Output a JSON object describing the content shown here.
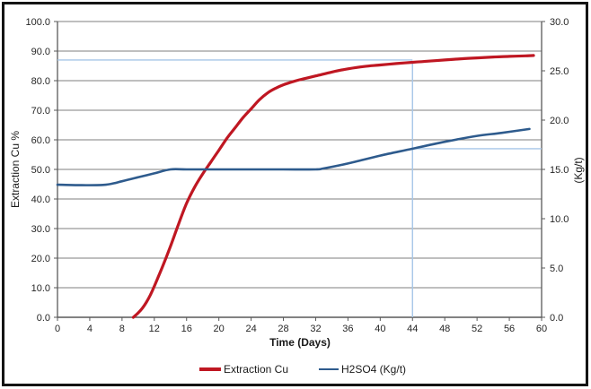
{
  "frame": {
    "background": "#ffffff",
    "border_color": "#141414"
  },
  "chart_data": {
    "type": "line",
    "title": "",
    "xlabel": "Time (Days)",
    "ylabel_left": "Extraction Cu %",
    "ylabel_right": "(Kg/t)",
    "xlim": [
      0,
      60
    ],
    "x_ticks": [
      0,
      4,
      8,
      12,
      16,
      20,
      24,
      28,
      32,
      36,
      40,
      44,
      48,
      52,
      56,
      60
    ],
    "ylim_left": [
      0,
      100
    ],
    "y_ticks_left": [
      0,
      10,
      20,
      30,
      40,
      50,
      60,
      70,
      80,
      90,
      100
    ],
    "ylim_right": [
      0,
      30
    ],
    "y_ticks_right": [
      0,
      5,
      10,
      15,
      20,
      25,
      30
    ],
    "y_tick_decimals": 1,
    "grid": "horizontal",
    "legend_position": "bottom-center",
    "colors": {
      "gridline": "#7f7f7f",
      "axis": "#595959",
      "text": "#262626",
      "annotation": "#a6c6e8"
    },
    "series": [
      {
        "name": "Extraction Cu",
        "axis": "left",
        "color": "#bf1722",
        "width": 3.2,
        "points": [
          [
            9.4,
            0
          ],
          [
            10,
            1.5
          ],
          [
            10.5,
            3
          ],
          [
            11,
            5
          ],
          [
            11.5,
            7.5
          ],
          [
            12,
            10.5
          ],
          [
            13,
            17
          ],
          [
            14,
            24
          ],
          [
            15,
            31.5
          ],
          [
            16,
            38.5
          ],
          [
            17,
            44
          ],
          [
            18,
            48.5
          ],
          [
            19,
            52.5
          ],
          [
            20,
            56.5
          ],
          [
            21,
            60.5
          ],
          [
            22,
            64
          ],
          [
            23,
            67.5
          ],
          [
            24,
            70.5
          ],
          [
            25,
            73.5
          ],
          [
            26,
            75.8
          ],
          [
            27,
            77.4
          ],
          [
            28,
            78.6
          ],
          [
            29,
            79.5
          ],
          [
            30,
            80.3
          ],
          [
            32,
            81.6
          ],
          [
            34,
            82.9
          ],
          [
            36,
            84
          ],
          [
            38,
            84.8
          ],
          [
            40,
            85.3
          ],
          [
            42,
            85.8
          ],
          [
            44,
            86.2
          ],
          [
            46,
            86.6
          ],
          [
            48,
            87
          ],
          [
            50,
            87.4
          ],
          [
            52,
            87.7
          ],
          [
            54,
            88
          ],
          [
            56,
            88.2
          ],
          [
            58,
            88.4
          ],
          [
            59,
            88.5
          ]
        ]
      },
      {
        "name": "H2SO4 (Kg/t)",
        "axis": "right",
        "color": "#2e5b8d",
        "width": 2.6,
        "points": [
          [
            0,
            13.45
          ],
          [
            3,
            13.4
          ],
          [
            6,
            13.45
          ],
          [
            8,
            13.8
          ],
          [
            10,
            14.2
          ],
          [
            12,
            14.6
          ],
          [
            14,
            15
          ],
          [
            16,
            15
          ],
          [
            20,
            15
          ],
          [
            24,
            15
          ],
          [
            28,
            15
          ],
          [
            32,
            15
          ],
          [
            33,
            15.1
          ],
          [
            36,
            15.6
          ],
          [
            40,
            16.4
          ],
          [
            44,
            17.1
          ],
          [
            48,
            17.8
          ],
          [
            52,
            18.4
          ],
          [
            55,
            18.7
          ],
          [
            58.5,
            19.1
          ]
        ]
      }
    ],
    "annotations": [
      {
        "type": "vline",
        "axis": "left",
        "x": 44,
        "y_from": 0,
        "y_to": 86.2
      },
      {
        "type": "hline",
        "axis": "left",
        "y": 87,
        "x_from": 0,
        "x_to": 44
      },
      {
        "type": "hline",
        "axis": "right",
        "y": 17.1,
        "x_from": 44,
        "x_to": 60
      }
    ]
  }
}
